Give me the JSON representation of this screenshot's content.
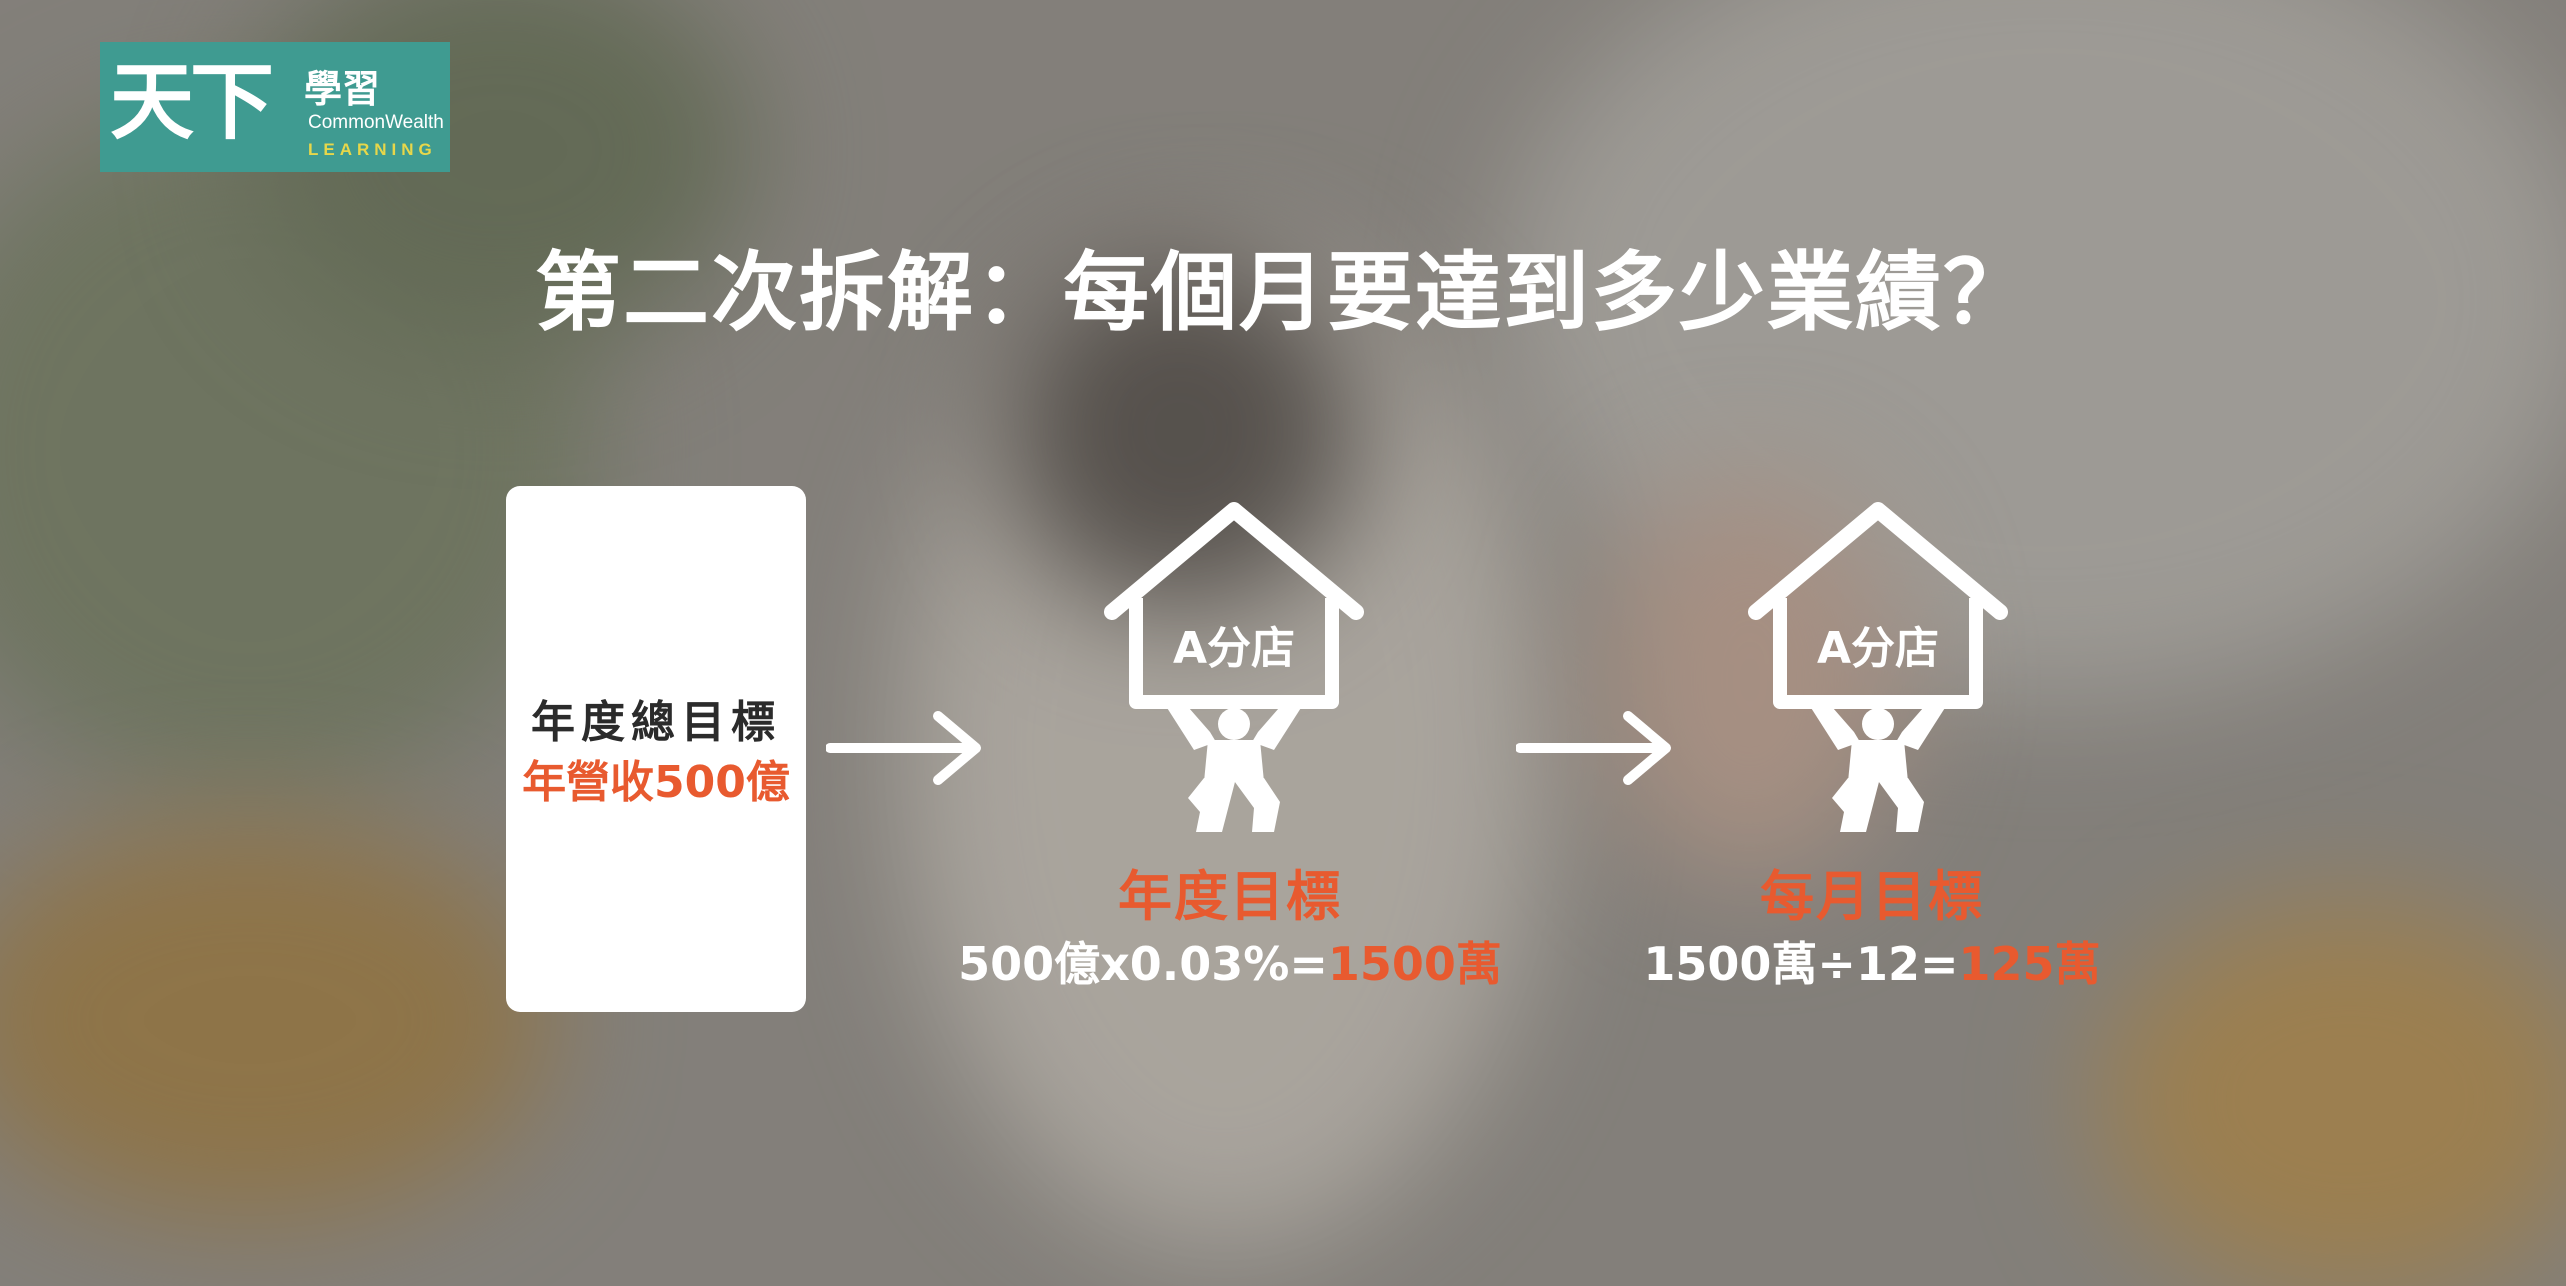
{
  "logo": {
    "main": "天下",
    "sub": "學習",
    "english": "CommonWealth",
    "learning": "LEARNING"
  },
  "title": "第二次拆解：每個月要達到多少業績？",
  "card": {
    "line1": "年度總目標",
    "line2": "年營收500億"
  },
  "annual": {
    "store_label": "A分店",
    "goal_title": "年度目標",
    "formula_prefix": "500億x0.03%=",
    "formula_result": "1500萬"
  },
  "monthly": {
    "store_label": "A分店",
    "goal_title": "每月目標",
    "formula_prefix": "1500萬÷12=",
    "formula_result": "125萬"
  },
  "colors": {
    "accent": "#e85a2f",
    "logo_bg": "#3f9b91",
    "white": "#ffffff"
  }
}
